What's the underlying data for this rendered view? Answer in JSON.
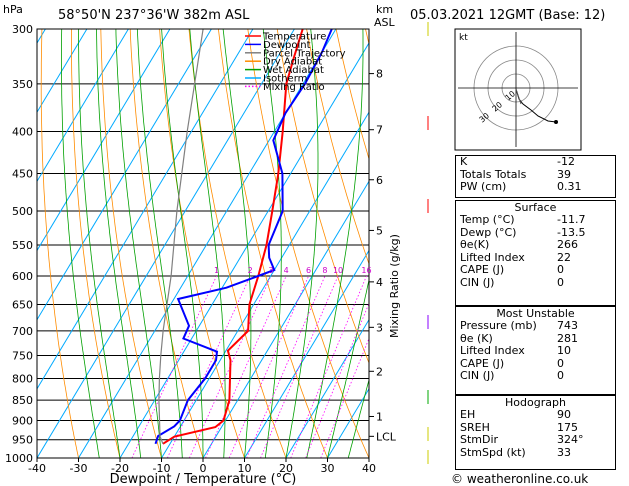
{
  "header": {
    "pressure_unit": "hPa",
    "location": "58°50'N  237°36'W  382m  ASL",
    "km_label": "km",
    "asl_label": "ASL",
    "datetime": "05.03.2021  12GMT  (Base: 12)"
  },
  "footer": {
    "copyright": "© weatheronline.co.uk"
  },
  "legend": [
    {
      "label": "Temperature",
      "color": "#ff0000",
      "style": "solid"
    },
    {
      "label": "Dewpoint",
      "color": "#0000ff",
      "style": "solid"
    },
    {
      "label": "Parcel Trajectory",
      "color": "#808080",
      "style": "solid"
    },
    {
      "label": "Dry Adiabat",
      "color": "#ff8c00",
      "style": "solid"
    },
    {
      "label": "Wet Adiabat",
      "color": "#00a000",
      "style": "solid"
    },
    {
      "label": "Isotherm",
      "color": "#00aaff",
      "style": "solid"
    },
    {
      "label": "Mixing Ratio",
      "color": "#ff00ff",
      "style": "dotted"
    }
  ],
  "chart_data": {
    "type": "line",
    "title": "Skew-T log-P diagram",
    "xlabel": "Dewpoint / Temperature (°C)",
    "ylabel": "hPa",
    "xlim": [
      -40,
      40
    ],
    "ylim": [
      1000,
      300
    ],
    "x_ticks": [
      -40,
      -30,
      -20,
      -10,
      0,
      10,
      20,
      30,
      40
    ],
    "pressure_levels": [
      300,
      350,
      400,
      450,
      500,
      550,
      600,
      650,
      700,
      750,
      800,
      850,
      900,
      950,
      1000
    ],
    "altitude_km": [
      {
        "label": "8",
        "p": 340
      },
      {
        "label": "7",
        "p": 398
      },
      {
        "label": "6",
        "p": 458
      },
      {
        "label": "5",
        "p": 528
      },
      {
        "label": "4",
        "p": 610
      },
      {
        "label": "3",
        "p": 693
      },
      {
        "label": "2",
        "p": 784
      },
      {
        "label": "1",
        "p": 890
      },
      {
        "label": "LCL",
        "p": 941
      }
    ],
    "mixing_ratio_axis_label": "Mixing Ratio (g/kg)",
    "mixing_ratio_lines": [
      1,
      2,
      3,
      4,
      6,
      8,
      10,
      16,
      20,
      25
    ],
    "series": [
      {
        "name": "Temperature",
        "color": "#ff0000",
        "points": [
          [
            961,
            -11.7
          ],
          [
            942,
            -10
          ],
          [
            917,
            -1.5
          ],
          [
            900,
            -0.5
          ],
          [
            850,
            -2
          ],
          [
            800,
            -5
          ],
          [
            760,
            -7.5
          ],
          [
            740,
            -9.5
          ],
          [
            700,
            -7.5
          ],
          [
            650,
            -11
          ],
          [
            600,
            -13
          ],
          [
            550,
            -15.5
          ],
          [
            500,
            -19
          ],
          [
            450,
            -23
          ],
          [
            400,
            -28
          ],
          [
            350,
            -34
          ],
          [
            325,
            -36
          ],
          [
            300,
            -38
          ]
        ]
      },
      {
        "name": "Dewpoint",
        "color": "#0000ff",
        "points": [
          [
            961,
            -13.5
          ],
          [
            940,
            -14
          ],
          [
            915,
            -11.5
          ],
          [
            900,
            -11
          ],
          [
            850,
            -12
          ],
          [
            800,
            -11
          ],
          [
            760,
            -11
          ],
          [
            742,
            -12
          ],
          [
            715,
            -22
          ],
          [
            690,
            -22.5
          ],
          [
            640,
            -29
          ],
          [
            620,
            -19
          ],
          [
            590,
            -10
          ],
          [
            570,
            -13
          ],
          [
            550,
            -15
          ],
          [
            500,
            -16.5
          ],
          [
            450,
            -22
          ],
          [
            410,
            -29
          ],
          [
            380,
            -30
          ],
          [
            350,
            -29.5
          ],
          [
            320,
            -30
          ],
          [
            300,
            -31
          ]
        ]
      },
      {
        "name": "Parcel Trajectory",
        "color": "#808080",
        "points": [
          [
            961,
            -11.7
          ],
          [
            941,
            -13.5
          ],
          [
            850,
            -19
          ],
          [
            800,
            -22
          ],
          [
            750,
            -25
          ],
          [
            700,
            -28
          ],
          [
            600,
            -34
          ],
          [
            500,
            -42
          ],
          [
            400,
            -51
          ],
          [
            300,
            -62
          ]
        ]
      }
    ]
  },
  "indices": [
    {
      "label": "K",
      "value": "-12"
    },
    {
      "label": "Totals Totals",
      "value": "39"
    },
    {
      "label": "PW (cm)",
      "value": "0.31"
    }
  ],
  "surface": {
    "title": "Surface",
    "rows": [
      {
        "label": "Temp (°C)",
        "value": "-11.7"
      },
      {
        "label": "Dewp (°C)",
        "value": "-13.5"
      },
      {
        "label": "θe(K)",
        "value": "266"
      },
      {
        "label": "Lifted Index",
        "value": "22"
      },
      {
        "label": "CAPE (J)",
        "value": "0"
      },
      {
        "label": "CIN (J)",
        "value": "0"
      }
    ]
  },
  "most_unstable": {
    "title": "Most Unstable",
    "rows": [
      {
        "label": "Pressure (mb)",
        "value": "743"
      },
      {
        "label": "θe (K)",
        "value": "281"
      },
      {
        "label": "Lifted Index",
        "value": "10"
      },
      {
        "label": "CAPE (J)",
        "value": "0"
      },
      {
        "label": "CIN (J)",
        "value": "0"
      }
    ]
  },
  "hodograph": {
    "title": "Hodograph",
    "kt_label": "kt",
    "ring_labels": [
      "10",
      "20",
      "30"
    ],
    "rows": [
      {
        "label": "EH",
        "value": "90"
      },
      {
        "label": "SREH",
        "value": "175"
      },
      {
        "label": "StmDir",
        "value": "324°"
      },
      {
        "label": "StmSpd (kt)",
        "value": "33"
      }
    ]
  }
}
